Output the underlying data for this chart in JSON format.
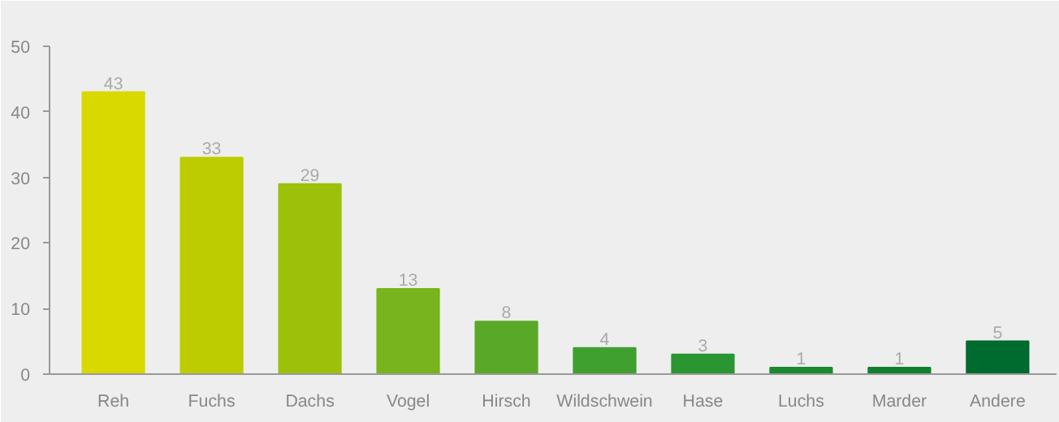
{
  "chart_data": {
    "type": "bar",
    "categories": [
      "Reh",
      "Fuchs",
      "Dachs",
      "Vogel",
      "Hirsch",
      "Wildschwein",
      "Hase",
      "Luchs",
      "Marder",
      "Andere"
    ],
    "values": [
      43,
      33,
      29,
      13,
      8,
      4,
      3,
      1,
      1,
      5
    ],
    "colors": [
      "#d9d900",
      "#bccc00",
      "#9dc00a",
      "#78b41e",
      "#5aa828",
      "#3fa030",
      "#2a9632",
      "#1a8a30",
      "#10802e",
      "#006b2e"
    ],
    "ylim": [
      0,
      50
    ],
    "yticks": [
      0,
      10,
      20,
      30,
      40,
      50
    ],
    "grid": false,
    "data_labels": true
  }
}
